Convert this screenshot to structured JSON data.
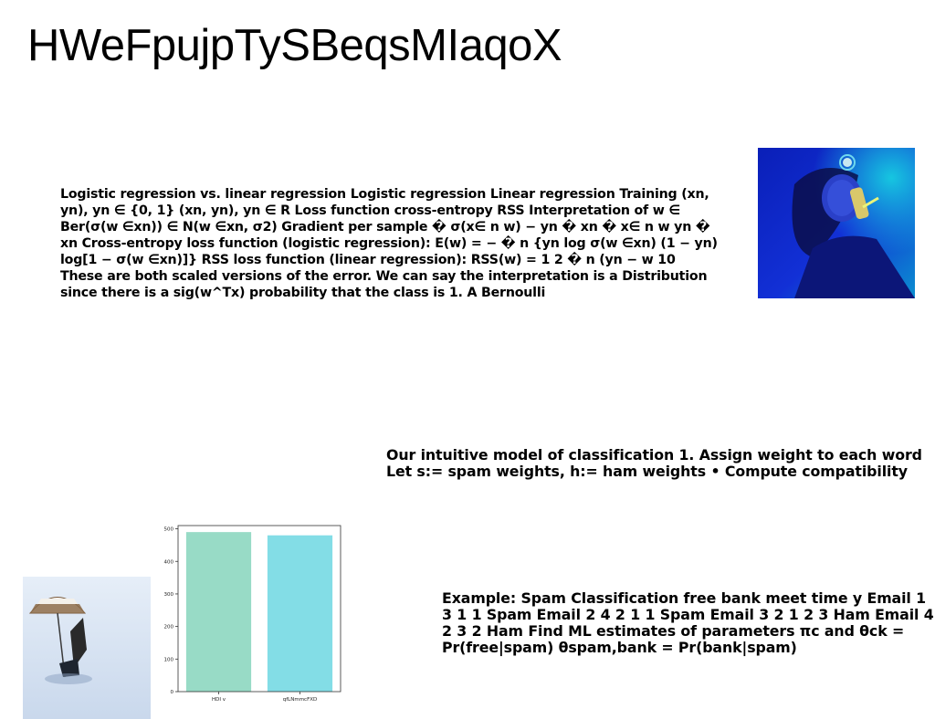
{
  "page": {
    "title": "HWeFpujpTySBeqsMIaqoX"
  },
  "blocks": {
    "paragraph_1": "Logistic regression vs. linear regression Logistic regression Linear regression Training (xn, yn), yn ∈ {0, 1} (xn, yn), yn ∈ R Loss function cross-entropy RSS Interpretation of w ∈ Ber(σ(w ∈xn)) ∈ N(w ∈xn, σ2) Gradient per sample � σ(x∈ n w) − yn � xn � x∈ n w yn � xn Cross-entropy loss function (logistic regression): E(w) = − � n {yn log σ(w ∈xn) (1 − yn) log[1 − σ(w ∈xn)]} RSS loss function (linear regression): RSS(w) = 1 2 � n (yn − w 10 These are both scaled versions of the error. We can say the interpretation is a Distribution since there is a sig(w^Tx) probability that the class is 1. A Bernoulli",
    "paragraph_2": "Our intuitive model of classification 1. Assign weight to each word Let s:= spam weights, h:= ham weights • Compute compatibility",
    "paragraph_3": "Example: Spam Classification free bank meet time y Email 1 3 1 1 Spam Email 2 4 2 1 1 Spam Email 3 2 1 2 3 Ham Email 4 2 3 2 Ham Find ML estimates of parameters πc and θck = Pr(free|spam) θspam,bank = Pr(bank|spam)"
  },
  "images": {
    "top_right": "woman-smoking-blue-light-photo",
    "bottom_left": "beach-umbrella-chair-snow-photo"
  },
  "chart_data": {
    "type": "bar",
    "categories": [
      "HDI v",
      "qfLNmmcFXD"
    ],
    "values": [
      490,
      480
    ],
    "colors": [
      "#98dbc6",
      "#83dde6"
    ],
    "ylim": [
      0,
      510
    ],
    "yticks": [
      "0",
      "100",
      "200",
      "300",
      "400",
      "500"
    ],
    "title": "",
    "xlabel": "",
    "ylabel": "",
    "grid": false
  }
}
